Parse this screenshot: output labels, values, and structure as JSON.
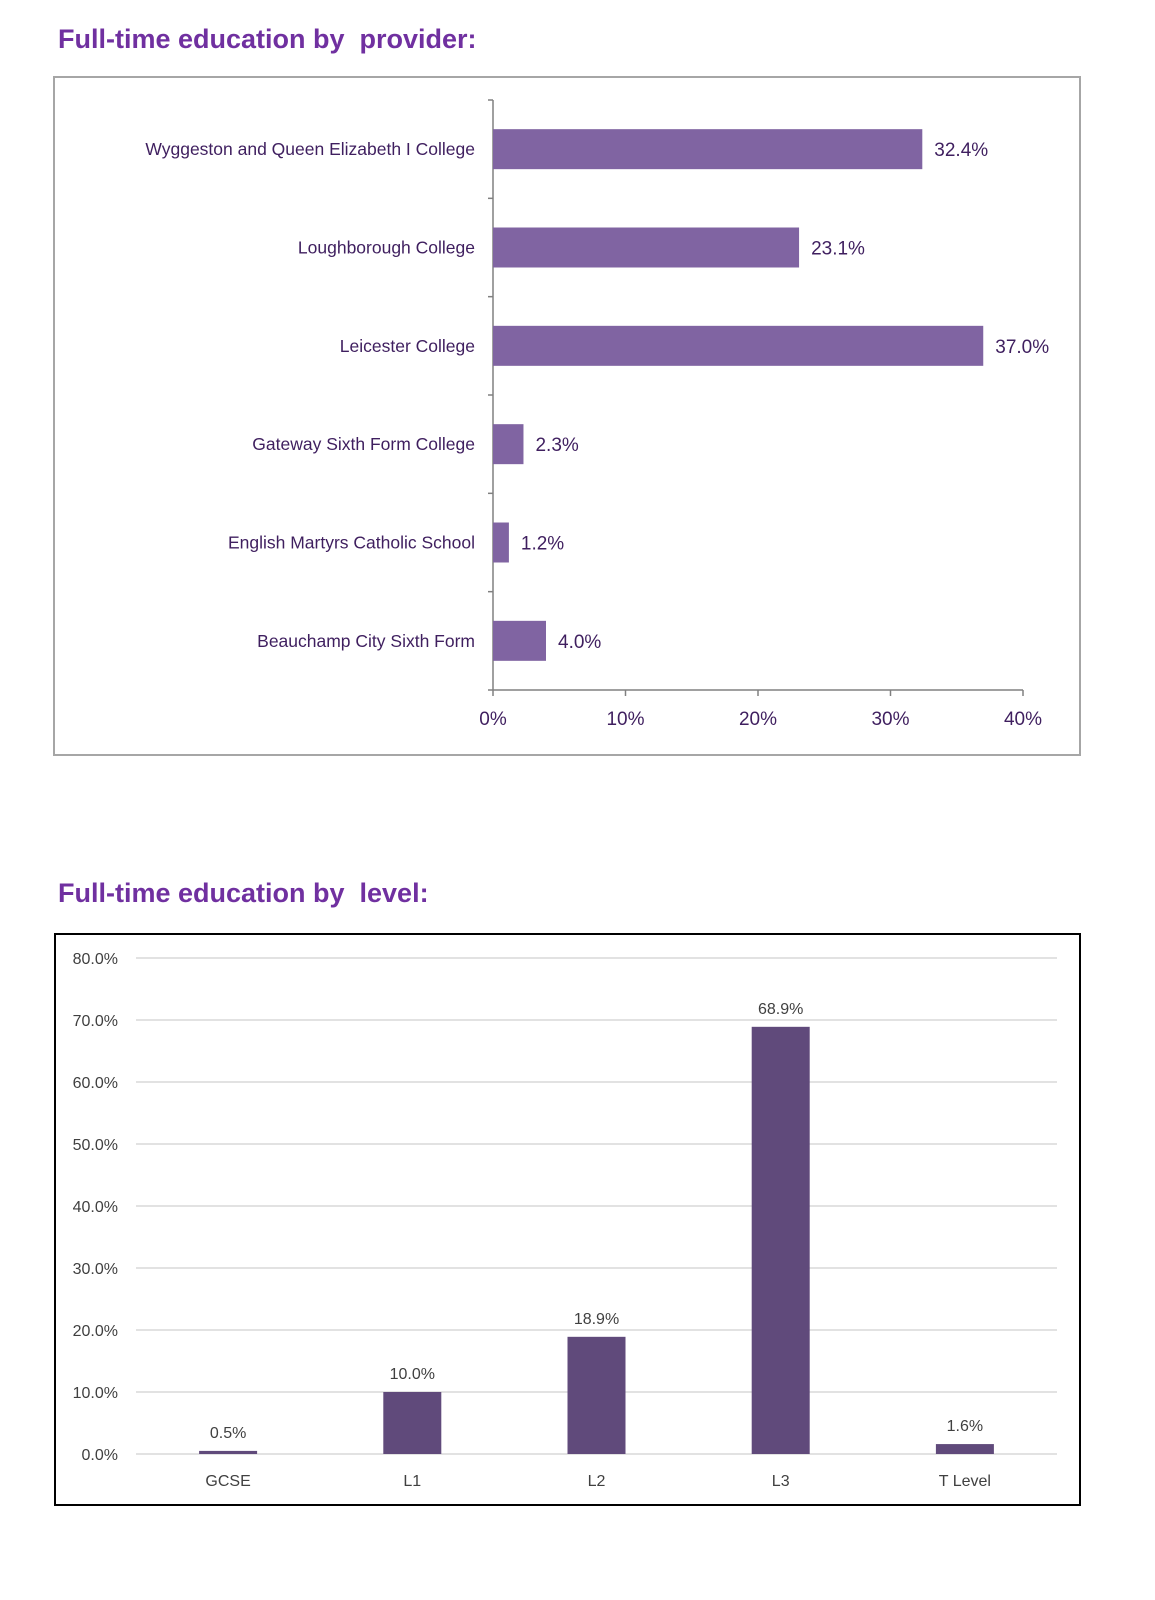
{
  "sections": [
    {
      "heading": "Full-time education by  provider:",
      "chart_data": {
        "type": "bar",
        "orientation": "horizontal",
        "categories": [
          "Wyggeston and Queen Elizabeth I College",
          "Loughborough College",
          "Leicester College",
          "Gateway Sixth Form College",
          "English Martyrs Catholic School",
          "Beauchamp City Sixth Form"
        ],
        "values": [
          32.4,
          23.1,
          37.0,
          2.3,
          1.2,
          4.0
        ],
        "data_labels": [
          "32.4%",
          "23.1%",
          "37.0%",
          "2.3%",
          "1.2%",
          "4.0%"
        ],
        "xlim": [
          0,
          40
        ],
        "x_ticks": [
          0,
          10,
          20,
          30,
          40
        ],
        "x_tick_labels": [
          "0%",
          "10%",
          "20%",
          "30%",
          "40%"
        ],
        "grid": false,
        "colors": {
          "bar": "#8064a2",
          "text": "#3f1f5f",
          "axis": "#808080"
        }
      }
    },
    {
      "heading": "Full-time education by  level:",
      "chart_data": {
        "type": "bar",
        "orientation": "vertical",
        "categories": [
          "GCSE",
          "L1",
          "L2",
          "L3",
          "T Level"
        ],
        "values": [
          0.5,
          10.0,
          18.9,
          68.9,
          1.6
        ],
        "data_labels": [
          "0.5%",
          "10.0%",
          "18.9%",
          "68.9%",
          "1.6%"
        ],
        "ylim": [
          0,
          80
        ],
        "y_ticks": [
          0,
          10,
          20,
          30,
          40,
          50,
          60,
          70,
          80
        ],
        "y_tick_labels": [
          "0.0%",
          "10.0%",
          "20.0%",
          "30.0%",
          "40.0%",
          "50.0%",
          "60.0%",
          "70.0%",
          "80.0%"
        ],
        "grid": true,
        "colors": {
          "bar": "#604a7b",
          "text": "#404040",
          "grid": "#d9d9d9"
        }
      }
    }
  ]
}
